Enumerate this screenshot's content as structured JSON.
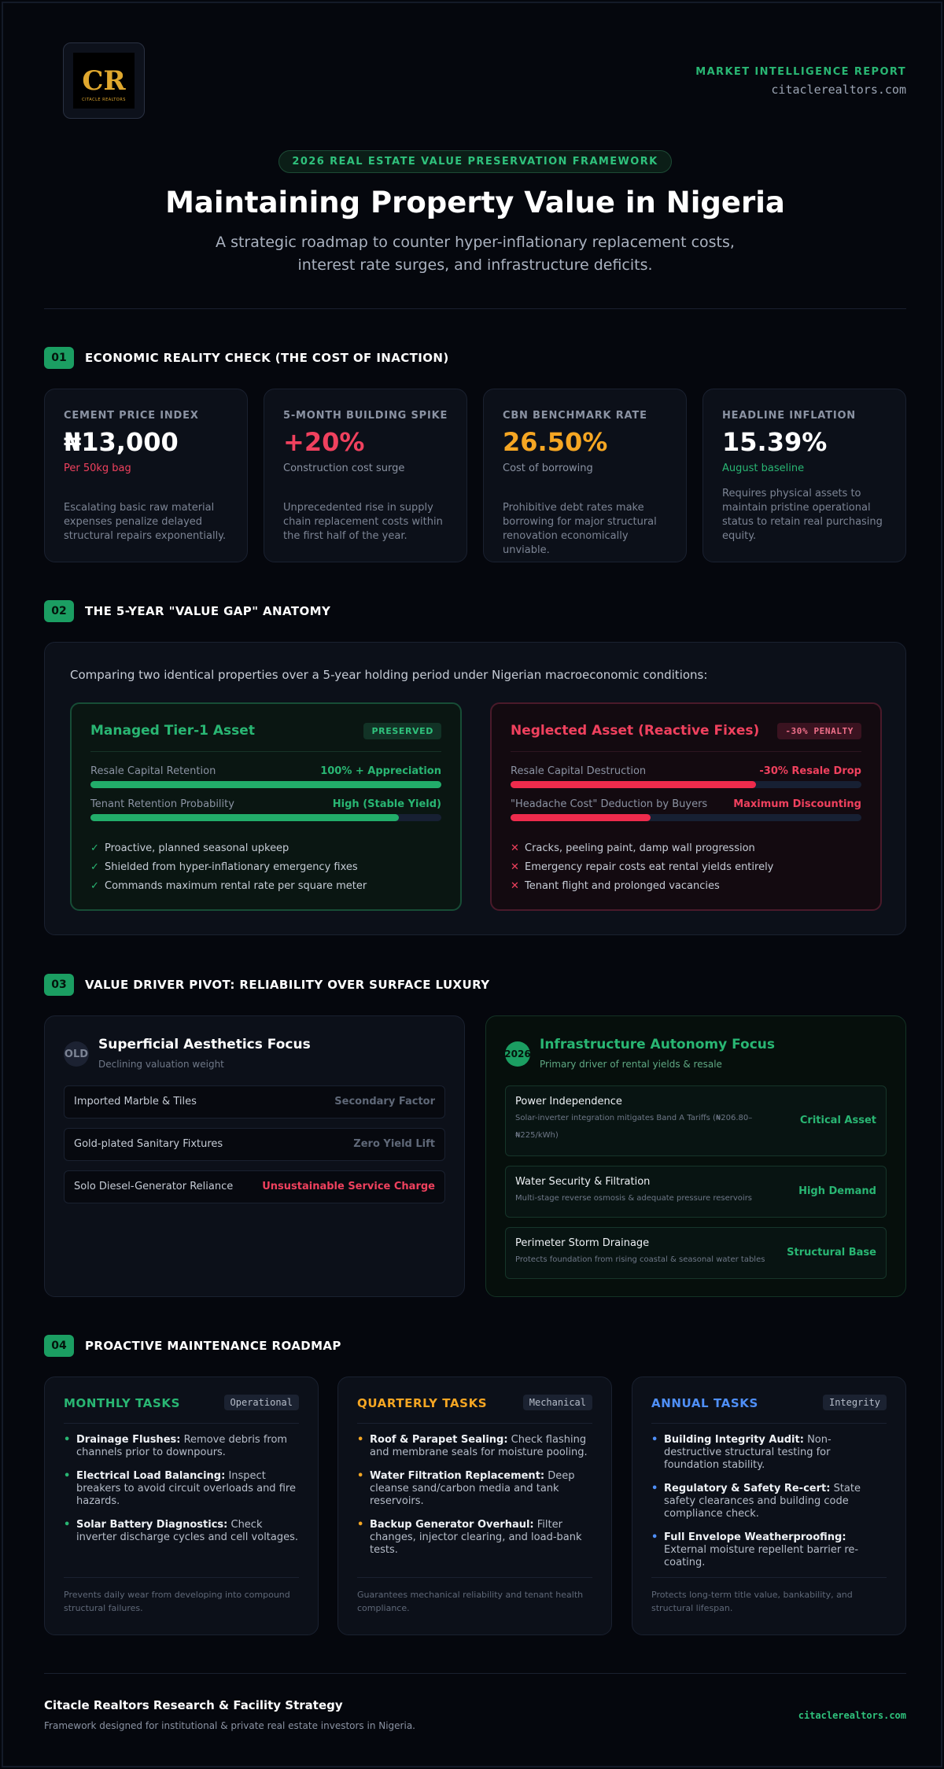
{
  "header": {
    "logo_mark": "CR",
    "logo_text": "CITACLE REALTORS",
    "kicker": "MARKET INTELLIGENCE REPORT",
    "site": "citaclerealtors.com",
    "pill": "2026 REAL ESTATE VALUE PRESERVATION FRAMEWORK",
    "title": "Maintaining Property Value in Nigeria",
    "subtitle": "A strategic roadmap to counter hyper-inflationary replacement costs, interest rate surges, and infrastructure deficits."
  },
  "colors": {
    "green": "#29b673",
    "red": "#f0415e",
    "amber": "#f5a623",
    "blue": "#4f8ff7"
  },
  "section1": {
    "num": "01",
    "title": "ECONOMIC REALITY CHECK (THE COST OF INACTION)",
    "cards": [
      {
        "label": "CEMENT PRICE INDEX",
        "value": "₦13,000",
        "note": "Per 50kg bag",
        "desc": "Escalating basic raw material expenses penalize delayed structural repairs exponentially."
      },
      {
        "label": "5-MONTH BUILDING SPIKE",
        "value": "+20%",
        "note": "Construction cost surge",
        "desc": "Unprecedented rise in supply chain replacement costs within the first half of the year."
      },
      {
        "label": "CBN BENCHMARK RATE",
        "value": "26.50%",
        "note": "Cost of borrowing",
        "desc": "Prohibitive debt rates make borrowing for major structural renovation economically unviable."
      },
      {
        "label": "HEADLINE INFLATION",
        "value": "15.39%",
        "note": "August baseline",
        "desc": "Requires physical assets to maintain pristine operational status to retain real purchasing equity."
      }
    ]
  },
  "section2": {
    "num": "02",
    "title": "THE 5-YEAR \"VALUE GAP\" ANATOMY",
    "intro": "Comparing two identical properties over a 5-year holding period under Nigerian macroeconomic conditions:",
    "managed": {
      "title": "Managed Tier-1 Asset",
      "badge": "PRESERVED",
      "rows": [
        {
          "label": "Resale Capital Retention",
          "value": "100% + Appreciation",
          "level": 1.0
        },
        {
          "label": "Tenant Retention Probability",
          "value": "High (Stable Yield)",
          "level": 0.88
        }
      ],
      "mark": "✓",
      "points": [
        "Proactive, planned seasonal upkeep",
        "Shielded from hyper-inflationary emergency fixes",
        "Commands maximum rental rate per square meter"
      ]
    },
    "neglected": {
      "title": "Neglected Asset (Reactive Fixes)",
      "badge": "-30% PENALTY",
      "rows": [
        {
          "label": "Resale Capital Destruction",
          "value": "-30% Resale Drop",
          "level": 0.7
        },
        {
          "label": "\"Headache Cost\" Deduction by Buyers",
          "value": "Maximum Discounting",
          "level": 0.4
        }
      ],
      "mark": "✕",
      "points": [
        "Cracks, peeling paint, damp wall progression",
        "Emergency repair costs eat rental yields entirely",
        "Tenant flight and prolonged vacancies"
      ]
    }
  },
  "section3": {
    "num": "03",
    "title": "VALUE DRIVER PIVOT: RELIABILITY OVER SURFACE LUXURY",
    "old": {
      "icon": "OLD",
      "title": "Superficial Aesthetics Focus",
      "sub": "Declining valuation weight",
      "items": [
        {
          "name": "Imported Marble & Tiles",
          "tag": "Secondary Factor"
        },
        {
          "name": "Gold-plated Sanitary Fixtures",
          "tag": "Zero Yield Lift"
        },
        {
          "name": "Solo Diesel-Generator Reliance",
          "tag": "Unsustainable Service Charge"
        }
      ]
    },
    "new": {
      "icon": "2026",
      "title": "Infrastructure Autonomy Focus",
      "sub": "Primary driver of rental yields & resale",
      "items": [
        {
          "name": "Power Independence",
          "desc": "Solar-inverter integration mitigates Band A Tariffs (₦206.80–₦225/kWh)",
          "tag": "Critical Asset"
        },
        {
          "name": "Water Security & Filtration",
          "desc": "Multi-stage reverse osmosis & adequate pressure reservoirs",
          "tag": "High Demand"
        },
        {
          "name": "Perimeter Storm Drainage",
          "desc": "Protects foundation from rising coastal & seasonal water tables",
          "tag": "Structural Base"
        }
      ]
    }
  },
  "section4": {
    "num": "04",
    "title": "PROACTIVE MAINTENANCE ROADMAP",
    "columns": [
      {
        "title": "MONTHLY TASKS",
        "chip": "Operational",
        "items": [
          {
            "b": "Drainage Flushes:",
            "t": " Remove debris from channels prior to downpours."
          },
          {
            "b": "Electrical Load Balancing:",
            "t": " Inspect breakers to avoid circuit overloads and fire hazards."
          },
          {
            "b": "Solar Battery Diagnostics:",
            "t": " Check inverter discharge cycles and cell voltages."
          }
        ],
        "foot": "Prevents daily wear from developing into compound structural failures."
      },
      {
        "title": "QUARTERLY TASKS",
        "chip": "Mechanical",
        "items": [
          {
            "b": "Roof & Parapet Sealing:",
            "t": " Check flashing and membrane seals for moisture pooling."
          },
          {
            "b": "Water Filtration Replacement:",
            "t": " Deep cleanse sand/carbon media and tank reservoirs."
          },
          {
            "b": "Backup Generator Overhaul:",
            "t": " Filter changes, injector clearing, and load-bank tests."
          }
        ],
        "foot": "Guarantees mechanical reliability and tenant health compliance."
      },
      {
        "title": "ANNUAL TASKS",
        "chip": "Integrity",
        "items": [
          {
            "b": "Building Integrity Audit:",
            "t": " Non-destructive structural testing for foundation stability."
          },
          {
            "b": "Regulatory & Safety Re-cert:",
            "t": " State safety clearances and building code compliance check."
          },
          {
            "b": "Full Envelope Weatherproofing:",
            "t": " External moisture repellent barrier re-coating."
          }
        ],
        "foot": "Protects long-term title value, bankability, and structural lifespan."
      }
    ]
  },
  "footer": {
    "title": "Citacle Realtors Research & Facility Strategy",
    "sub": "Framework designed for institutional & private real estate investors in Nigeria.",
    "site": "citaclerealtors.com"
  }
}
